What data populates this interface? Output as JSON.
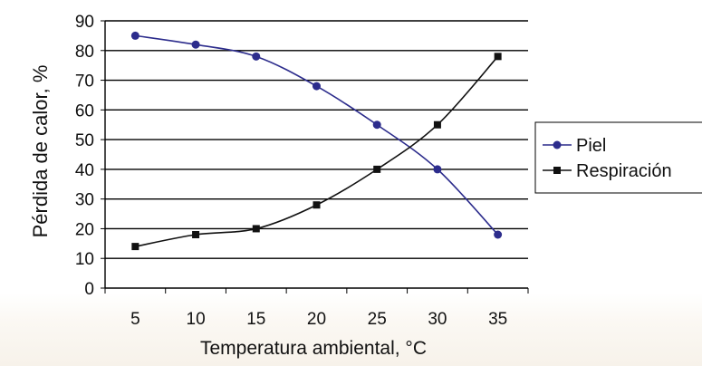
{
  "chart_data": {
    "type": "line",
    "title": "",
    "xlabel": "Temperatura ambiental, °C",
    "ylabel": "Pérdida de calor, %",
    "categories": [
      "5",
      "10",
      "15",
      "20",
      "25",
      "30",
      "35"
    ],
    "x": [
      5,
      10,
      15,
      20,
      25,
      30,
      35
    ],
    "ylim": [
      0,
      90
    ],
    "yticks": [
      "0",
      "10",
      "20",
      "30",
      "40",
      "50",
      "60",
      "70",
      "80",
      "90"
    ],
    "grid": true,
    "legend": "right",
    "series": [
      {
        "name": "Piel",
        "marker": "circle",
        "color": "#2c2c8c",
        "values": [
          85,
          82,
          78,
          68,
          55,
          40,
          18
        ]
      },
      {
        "name": "Respiración",
        "marker": "square",
        "color": "#111111",
        "values": [
          14,
          18,
          20,
          28,
          40,
          55,
          78
        ]
      }
    ]
  }
}
